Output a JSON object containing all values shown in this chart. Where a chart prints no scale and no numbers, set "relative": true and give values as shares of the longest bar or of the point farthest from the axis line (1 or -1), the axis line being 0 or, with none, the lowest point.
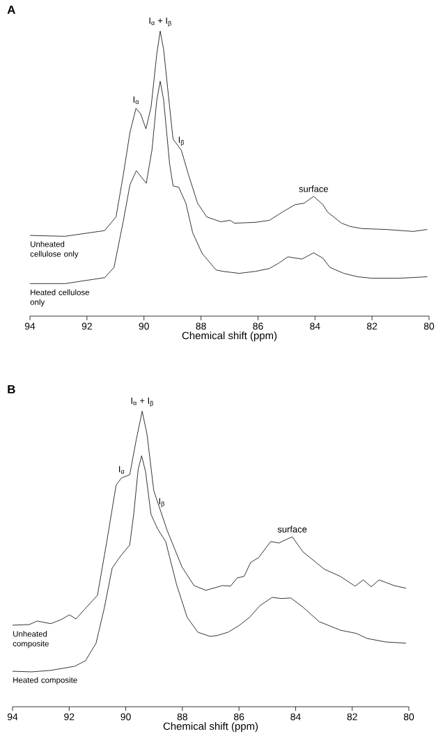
{
  "chart_data": [
    {
      "type": "line",
      "title": "A",
      "xlabel": "Chemical shift  (ppm)",
      "relative": true,
      "xlim": [
        94,
        80
      ],
      "xticks": [
        94,
        92,
        90,
        88,
        86,
        84,
        82,
        80
      ],
      "annotations": [
        {
          "text": "I$_{α}$ + I$_{β}$",
          "x": 89.43,
          "y": 1.0
        },
        {
          "text": "I$_{α}$",
          "x": 90.28,
          "y": 0.729
        },
        {
          "text": "I$_{β}$",
          "x": 88.69,
          "y": 0.582
        },
        {
          "text": "surface",
          "x": 84.05,
          "y": 0.42
        }
      ],
      "series": [
        {
          "name": "Unheated cellulose only",
          "color": "#000000",
          "x": [
            94,
            92.77,
            91.38,
            90.98,
            90.73,
            90.49,
            90.28,
            90.12,
            89.93,
            89.75,
            89.55,
            89.43,
            89.31,
            89.1,
            88.98,
            88.69,
            88.45,
            88.12,
            87.8,
            87.31,
            86.98,
            86.82,
            86.09,
            85.6,
            85.11,
            84.7,
            84.38,
            84.05,
            83.72,
            83.56,
            83.07,
            82.75,
            82.34,
            81.52,
            80.55,
            80.06
          ],
          "values": [
            0.283,
            0.28,
            0.3,
            0.348,
            0.493,
            0.645,
            0.729,
            0.71,
            0.657,
            0.734,
            0.92,
            1.0,
            0.935,
            0.734,
            0.621,
            0.582,
            0.5,
            0.396,
            0.348,
            0.331,
            0.336,
            0.326,
            0.329,
            0.336,
            0.367,
            0.391,
            0.396,
            0.42,
            0.391,
            0.365,
            0.326,
            0.314,
            0.307,
            0.304,
            0.297,
            0.304
          ]
        },
        {
          "name": "Heated cellulose only",
          "color": "#000000",
          "x": [
            94,
            92.77,
            91.38,
            91.05,
            90.73,
            90.49,
            90.27,
            89.92,
            89.72,
            89.55,
            89.43,
            89.31,
            89.1,
            88.98,
            88.78,
            88.53,
            88.29,
            87.96,
            87.47,
            87.23,
            86.66,
            86.09,
            85.6,
            85.27,
            84.95,
            84.46,
            84.05,
            83.72,
            83.48,
            82.99,
            82.5,
            82.01,
            81.03,
            80.06
          ],
          "values": [
            0.114,
            0.114,
            0.135,
            0.171,
            0.331,
            0.461,
            0.51,
            0.466,
            0.582,
            0.758,
            0.824,
            0.758,
            0.534,
            0.457,
            0.452,
            0.396,
            0.292,
            0.22,
            0.162,
            0.157,
            0.15,
            0.157,
            0.167,
            0.186,
            0.208,
            0.2,
            0.222,
            0.203,
            0.171,
            0.15,
            0.138,
            0.133,
            0.133,
            0.138
          ]
        }
      ]
    },
    {
      "type": "line",
      "title": "B",
      "xlabel": "Chemical shift  (ppm)",
      "relative": true,
      "xlim": [
        94,
        80
      ],
      "xticks": [
        94,
        92,
        90,
        88,
        86,
        84,
        82,
        80
      ],
      "annotations": [
        {
          "text": "I$_{α}$ + I$_{β}$",
          "x": 89.42,
          "y": 1.0
        },
        {
          "text": "I$_{α}$",
          "x": 90.15,
          "y": 0.774
        },
        {
          "text": "I$_{β}$",
          "x": 88.73,
          "y": 0.66
        },
        {
          "text": "surface",
          "x": 84.12,
          "y": 0.575
        }
      ],
      "series": [
        {
          "name": "Unheated composite",
          "color": "#000000",
          "x": [
            94,
            93.41,
            93.13,
            92.65,
            92.28,
            91.99,
            91.76,
            91.47,
            91.0,
            90.67,
            90.34,
            90.15,
            89.86,
            89.63,
            89.42,
            89.25,
            89.01,
            88.54,
            88.02,
            87.59,
            87.17,
            86.58,
            86.3,
            86.06,
            85.82,
            85.59,
            85.3,
            84.88,
            84.59,
            84.12,
            83.74,
            82.98,
            82.42,
            81.9,
            81.61,
            81.33,
            81.05,
            80.52,
            80.1
          ],
          "values": [
            0.276,
            0.278,
            0.29,
            0.281,
            0.295,
            0.311,
            0.297,
            0.328,
            0.377,
            0.559,
            0.75,
            0.774,
            0.785,
            0.903,
            1.0,
            0.922,
            0.731,
            0.597,
            0.474,
            0.41,
            0.394,
            0.41,
            0.408,
            0.436,
            0.441,
            0.488,
            0.505,
            0.559,
            0.554,
            0.575,
            0.524,
            0.465,
            0.441,
            0.408,
            0.429,
            0.406,
            0.429,
            0.41,
            0.401
          ]
        },
        {
          "name": "Heated composite",
          "color": "#000000",
          "x": [
            94,
            93.32,
            92.65,
            91.8,
            91.42,
            91.05,
            90.76,
            90.48,
            90.19,
            89.86,
            89.72,
            89.56,
            89.44,
            89.3,
            89.11,
            88.87,
            88.59,
            88.21,
            87.83,
            87.45,
            87.02,
            86.77,
            86.39,
            86.01,
            85.63,
            85.26,
            84.83,
            84.5,
            84.17,
            83.74,
            83.17,
            82.42,
            81.85,
            81.47,
            80.81,
            80.1
          ],
          "values": [
            0.12,
            0.118,
            0.123,
            0.137,
            0.156,
            0.215,
            0.333,
            0.469,
            0.509,
            0.547,
            0.651,
            0.804,
            0.849,
            0.795,
            0.651,
            0.601,
            0.559,
            0.415,
            0.302,
            0.252,
            0.238,
            0.241,
            0.252,
            0.274,
            0.302,
            0.342,
            0.37,
            0.366,
            0.368,
            0.337,
            0.288,
            0.259,
            0.248,
            0.231,
            0.219,
            0.215
          ]
        }
      ]
    }
  ]
}
